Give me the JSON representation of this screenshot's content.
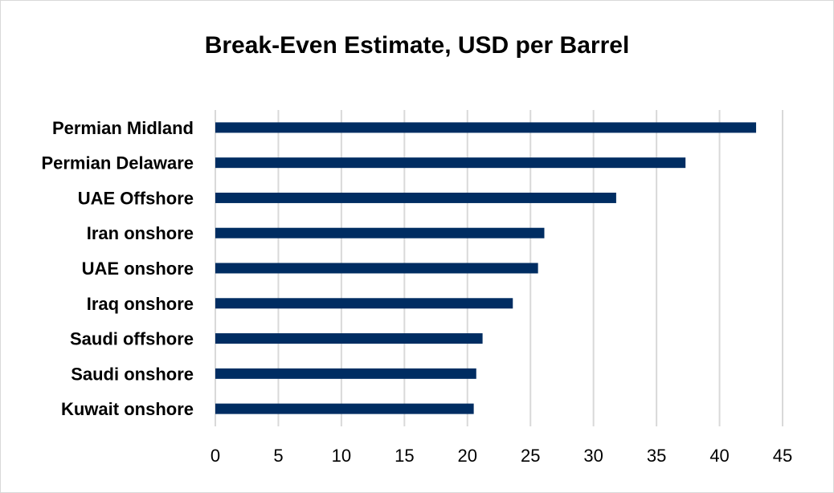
{
  "chart_data": {
    "type": "bar",
    "orientation": "horizontal",
    "title": "Break-Even Estimate, USD per Barrel",
    "xlabel": "",
    "ylabel": "",
    "categories": [
      "Permian Midland",
      "Permian Delaware",
      "UAE Offshore",
      "Iran onshore",
      "UAE onshore",
      "Iraq onshore",
      "Saudi offshore",
      "Saudi onshore",
      "Kuwait onshore"
    ],
    "values": [
      42.9,
      37.3,
      31.8,
      26.1,
      25.6,
      23.6,
      21.2,
      20.7,
      20.5
    ],
    "xlim": [
      0,
      45
    ],
    "xticks": [
      0,
      5,
      10,
      15,
      20,
      25,
      30,
      35,
      40,
      45
    ],
    "grid": true,
    "legend": "none",
    "bar_color": "#002d62",
    "grid_color": "#d9d9d9"
  }
}
